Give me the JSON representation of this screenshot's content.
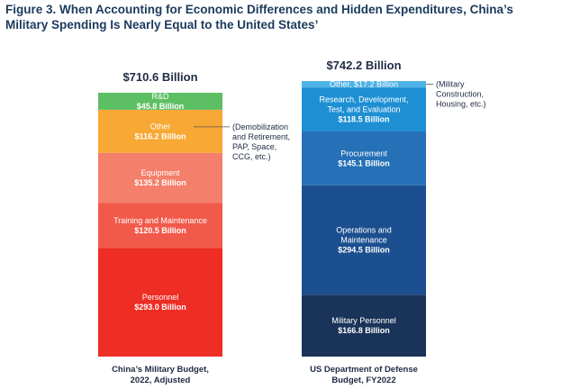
{
  "title": "Figure 3. When Accounting for Economic Differences and Hidden Expenditures, China’s Military Spending Is Nearly Equal to the United States’",
  "chart_data": {
    "type": "bar",
    "stacked": true,
    "unit": "Billion",
    "bars": [
      {
        "name": "China’s Military Budget, 2022, Adjusted",
        "label_lines": [
          "China’s Military Budget,",
          "2022, Adjusted"
        ],
        "total_label": "$710.6 Billion",
        "total": 710.6,
        "segments": [
          {
            "label_lines": [
              "Personnel"
            ],
            "value": 293.0,
            "value_label": "$293.0 Billion",
            "color": "#ee2d24"
          },
          {
            "label_lines": [
              "Training and Maintenance"
            ],
            "value": 120.5,
            "value_label": "$120.5 Billion",
            "color": "#f15a4a"
          },
          {
            "label_lines": [
              "Equipment"
            ],
            "value": 135.2,
            "value_label": "$135.2 Billion",
            "color": "#f47f6a"
          },
          {
            "label_lines": [
              "Other"
            ],
            "value": 116.2,
            "value_label": "$116.2 Billion",
            "color": "#f8a834",
            "note_lines": [
              "(Demobilization",
              "and Retirement,",
              "PAP, Space,",
              "CCG, etc.)"
            ]
          },
          {
            "label_lines": [
              "R&D"
            ],
            "value": 45.8,
            "value_label": "$45.8 Billion",
            "color": "#5cbf63"
          }
        ]
      },
      {
        "name": "US Department of Defense Budget, FY2022",
        "label_lines": [
          "US Department of Defense",
          "Budget, FY2022"
        ],
        "total_label": "$742.2 Billion",
        "total": 742.2,
        "segments": [
          {
            "label_lines": [
              "Military Personnel"
            ],
            "value": 166.8,
            "value_label": "$166.8 Billion",
            "color": "#1a3358"
          },
          {
            "label_lines": [
              "Operations and",
              "Maintenance"
            ],
            "value": 294.5,
            "value_label": "$294.5 Billion",
            "color": "#1b4f8f"
          },
          {
            "label_lines": [
              "Procurement"
            ],
            "value": 145.1,
            "value_label": "$145.1 Billion",
            "color": "#2570b6"
          },
          {
            "label_lines": [
              "Research, Development,",
              "Test, and Evaluation"
            ],
            "value": 118.5,
            "value_label": "$118.5 Billion",
            "color": "#1e8fd3"
          },
          {
            "label_lines": [
              "Other,"
            ],
            "value": 17.2,
            "value_label": "$17.2 Billion",
            "color": "#4db2e5",
            "inline": true,
            "note_lines": [
              "(Military",
              "Construction,",
              "Housing, etc.)"
            ]
          }
        ]
      }
    ]
  }
}
